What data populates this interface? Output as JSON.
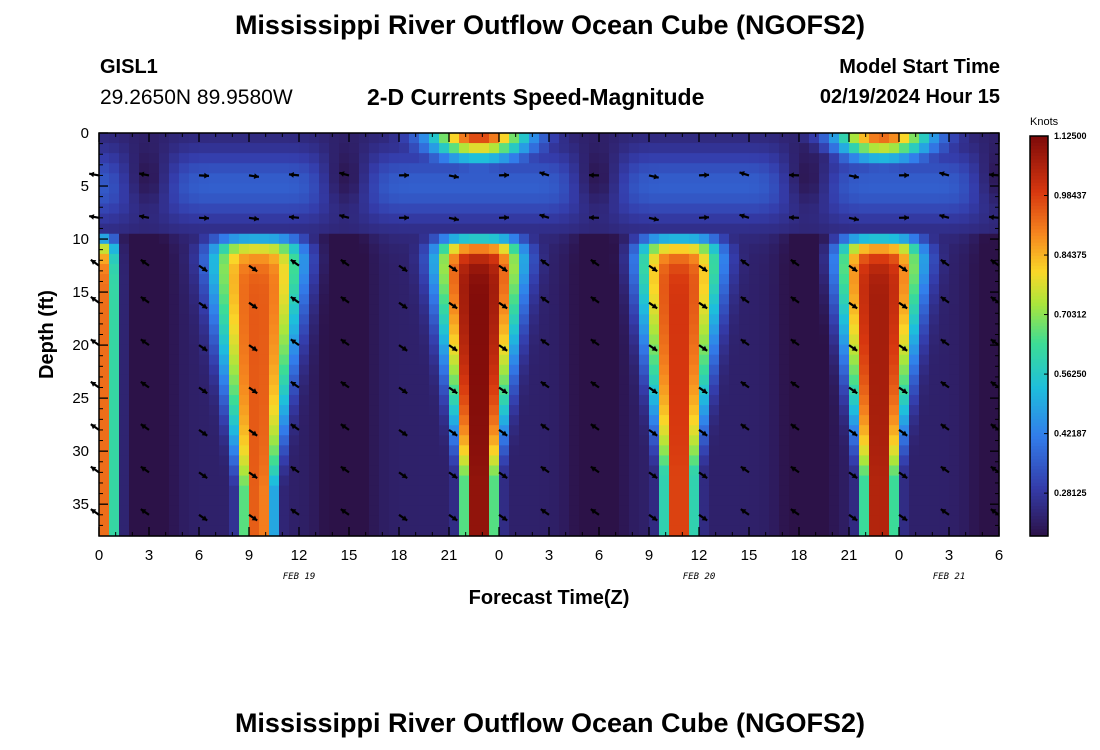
{
  "header": {
    "title": "Mississippi River Outflow Ocean Cube (NGOFS2)",
    "title_repeat": "Mississippi River Outflow Ocean Cube (NGOFS2)",
    "station": "GISL1",
    "coords": "29.2650N  89.9580W",
    "subtitle": "2-D Currents Speed-Magnitude",
    "model_start_label": "Model Start Time",
    "model_start_value": "02/19/2024 Hour 15"
  },
  "chart_data": {
    "type": "heatmap",
    "title": "2-D Currents Speed-Magnitude",
    "xlabel": "Forecast Time(Z)",
    "ylabel": "Depth (ft)",
    "x_hours_range": [
      0,
      54
    ],
    "ylim": [
      0,
      38
    ],
    "x_ticks": [
      {
        "h": 0,
        "label": "0"
      },
      {
        "h": 3,
        "label": "3"
      },
      {
        "h": 6,
        "label": "6"
      },
      {
        "h": 9,
        "label": "9"
      },
      {
        "h": 12,
        "label": "12"
      },
      {
        "h": 15,
        "label": "15"
      },
      {
        "h": 18,
        "label": "18"
      },
      {
        "h": 21,
        "label": "21"
      },
      {
        "h": 24,
        "label": "0"
      },
      {
        "h": 27,
        "label": "3"
      },
      {
        "h": 30,
        "label": "6"
      },
      {
        "h": 33,
        "label": "9"
      },
      {
        "h": 36,
        "label": "12"
      },
      {
        "h": 39,
        "label": "15"
      },
      {
        "h": 42,
        "label": "18"
      },
      {
        "h": 45,
        "label": "21"
      },
      {
        "h": 48,
        "label": "0"
      },
      {
        "h": 51,
        "label": "3"
      },
      {
        "h": 54,
        "label": "6"
      }
    ],
    "y_ticks": [
      0,
      5,
      10,
      15,
      20,
      25,
      30,
      35
    ],
    "date_labels": [
      {
        "h": 12,
        "label": "FEB 19"
      },
      {
        "h": 36,
        "label": "FEB 20"
      },
      {
        "h": 51,
        "label": "FEB 21"
      }
    ],
    "colorbar": {
      "unit": "Knots",
      "min": 0.18,
      "max": 1.125,
      "tick_labels": [
        "1.12500",
        "0.98437",
        "0.84375",
        "0.70312",
        "0.56250",
        "0.42187",
        "0.28125"
      ],
      "tick_values": [
        1.125,
        0.984375,
        0.84375,
        0.703125,
        0.5625,
        0.421875,
        0.28125
      ]
    },
    "speed_peaks": [
      {
        "hour": 0.1,
        "speed": 0.95,
        "half_width": 0.6
      },
      {
        "hour": 9.5,
        "speed": 0.95,
        "half_width": 2.8
      },
      {
        "hour": 22.8,
        "speed": 1.12,
        "half_width": 2.6
      },
      {
        "hour": 34.8,
        "speed": 1.0,
        "half_width": 2.5
      },
      {
        "hour": 46.8,
        "speed": 1.07,
        "half_width": 2.6
      }
    ],
    "surface_peaks": [
      {
        "hour": 22.8,
        "speed": 1.0
      },
      {
        "hour": 47.0,
        "speed": 0.95
      }
    ],
    "slack_minima_hours": [
      2.9,
      14.8,
      29.9,
      42.5,
      54.0
    ],
    "min_speed": 0.22,
    "vector_depths_ft": [
      4,
      8,
      12.5,
      16,
      20,
      24,
      28,
      32,
      36
    ],
    "vector_hours": [
      0,
      3,
      6,
      9,
      12,
      15,
      18,
      21,
      24,
      27,
      30,
      33,
      36,
      39,
      42,
      45,
      48,
      51,
      54
    ]
  }
}
